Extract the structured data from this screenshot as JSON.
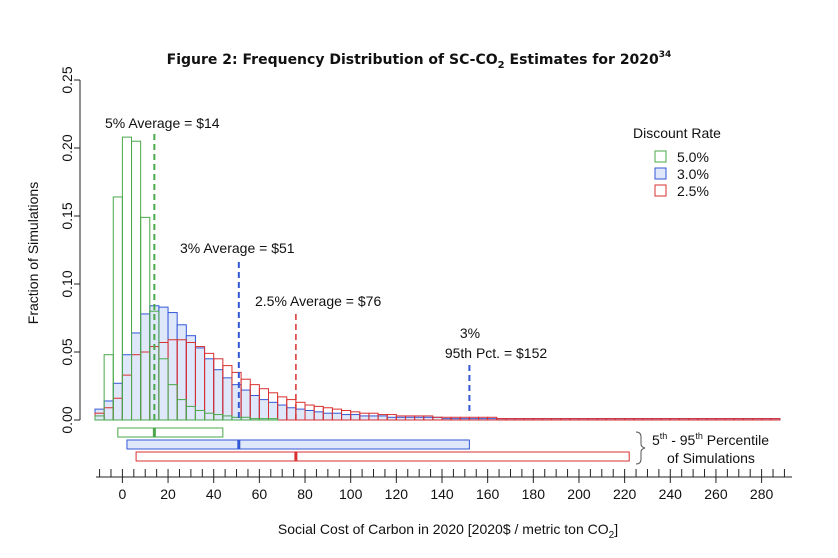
{
  "chart_data": {
    "type": "bar",
    "title": {
      "main": "Figure 2: Frequency Distribution of SC-CO",
      "sub": "2",
      "tail": " Estimates for 2020",
      "sup": "34"
    },
    "xlabel": {
      "main": "Social Cost of Carbon in 2020 [2020$ / metric ton CO",
      "sub": "2",
      "tail": "]"
    },
    "ylabel": "Fraction of Simulations",
    "xlim": [
      -12,
      292
    ],
    "ylim": [
      0,
      0.25
    ],
    "x_ticks": [
      0,
      20,
      40,
      60,
      80,
      100,
      120,
      140,
      160,
      180,
      200,
      220,
      240,
      260,
      280
    ],
    "y_ticks": [
      "0.00",
      "0.05",
      "0.10",
      "0.15",
      "0.20",
      "0.25"
    ],
    "bin_width": 4,
    "bin_start": -12,
    "legend": {
      "title": "Discount Rate",
      "position": "top-right",
      "entries": [
        "5.0%",
        "3.0%",
        "2.5%"
      ]
    },
    "series": [
      {
        "name": "5.0%",
        "color": "#4aa84a",
        "fill": "none",
        "values": [
          0.003,
          0.048,
          0.164,
          0.208,
          0.205,
          0.149,
          0.08,
          0.045,
          0.026,
          0.015,
          0.01,
          0.007,
          0.005,
          0.004,
          0.003,
          0.002,
          0.002,
          0.001,
          0.001,
          0.001
        ],
        "average_label": "5% Average = $14",
        "average": 14,
        "range_5_95": [
          -2,
          44
        ]
      },
      {
        "name": "3.0%",
        "color": "#3358d6",
        "fill": "#dfe7fa",
        "values": [
          0.008,
          0.014,
          0.027,
          0.048,
          0.064,
          0.078,
          0.084,
          0.083,
          0.079,
          0.07,
          0.062,
          0.053,
          0.045,
          0.037,
          0.031,
          0.026,
          0.022,
          0.018,
          0.015,
          0.013,
          0.011,
          0.009,
          0.008,
          0.007,
          0.006,
          0.005,
          0.005,
          0.004,
          0.004,
          0.003,
          0.003,
          0.003,
          0.002,
          0.002,
          0.002,
          0.002,
          0.002,
          0.002,
          0.001,
          0.001,
          0.001,
          0.001,
          0.001,
          0.001,
          0.001,
          0.001,
          0.001,
          0.001,
          0.001,
          0.001,
          0.001,
          0.001,
          0.001,
          0.001,
          0.001,
          0.001,
          0.001,
          0.001,
          0.001,
          0.001,
          0.001,
          0.001,
          0.001,
          0.001,
          0.001,
          0.001,
          0.001,
          0.001,
          0.001,
          0.001,
          0.001,
          0.001,
          0.001,
          0.001,
          0.001
        ],
        "average_label": "3% Average = $51",
        "average": 51,
        "pct95_label_line1": "3%",
        "pct95_label_line2": "95th Pct. = $152",
        "pct95": 152,
        "range_5_95": [
          2,
          152
        ]
      },
      {
        "name": "2.5%",
        "color": "#d93030",
        "fill": "none",
        "values": [
          0.005,
          0.009,
          0.016,
          0.033,
          0.048,
          0.05,
          0.054,
          0.057,
          0.059,
          0.059,
          0.057,
          0.054,
          0.049,
          0.045,
          0.04,
          0.035,
          0.03,
          0.026,
          0.023,
          0.02,
          0.017,
          0.015,
          0.013,
          0.011,
          0.01,
          0.009,
          0.008,
          0.007,
          0.006,
          0.005,
          0.005,
          0.004,
          0.004,
          0.003,
          0.003,
          0.003,
          0.003,
          0.002,
          0.002,
          0.002,
          0.002,
          0.002,
          0.002,
          0.002,
          0.001,
          0.001,
          0.001,
          0.001,
          0.001,
          0.001,
          0.001,
          0.001,
          0.001,
          0.001,
          0.001,
          0.001,
          0.001,
          0.001,
          0.001,
          0.001,
          0.001,
          0.001,
          0.001,
          0.001,
          0.001,
          0.001,
          0.001,
          0.001,
          0.001,
          0.001,
          0.001,
          0.001,
          0.001,
          0.001,
          0.001
        ],
        "average_label": "2.5% Average = $76",
        "average": 76,
        "range_5_95": [
          6,
          222
        ]
      }
    ],
    "percentile_label": {
      "sup1": "th",
      "pre": "5",
      "mid": " - 95",
      "sup2": "th",
      "tail": " Percentile",
      "line2": "of Simulations"
    }
  }
}
